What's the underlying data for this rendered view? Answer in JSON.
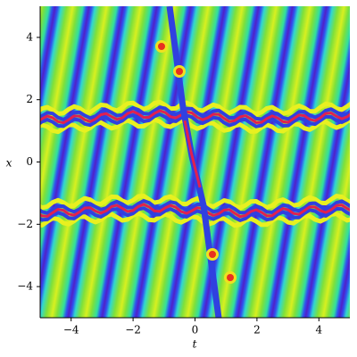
{
  "chart_data": {
    "type": "density",
    "xlabel": "t",
    "ylabel": "x",
    "xlim": [
      -5,
      5
    ],
    "ylim": [
      -5,
      5
    ],
    "xticks": [
      {
        "value": -4,
        "label": "−4"
      },
      {
        "value": -2,
        "label": "−2"
      },
      0,
      2,
      4
    ],
    "yticks": [
      {
        "value": -4,
        "label": "−4"
      },
      {
        "value": -2,
        "label": "−2"
      },
      0,
      2,
      4
    ]
  }
}
